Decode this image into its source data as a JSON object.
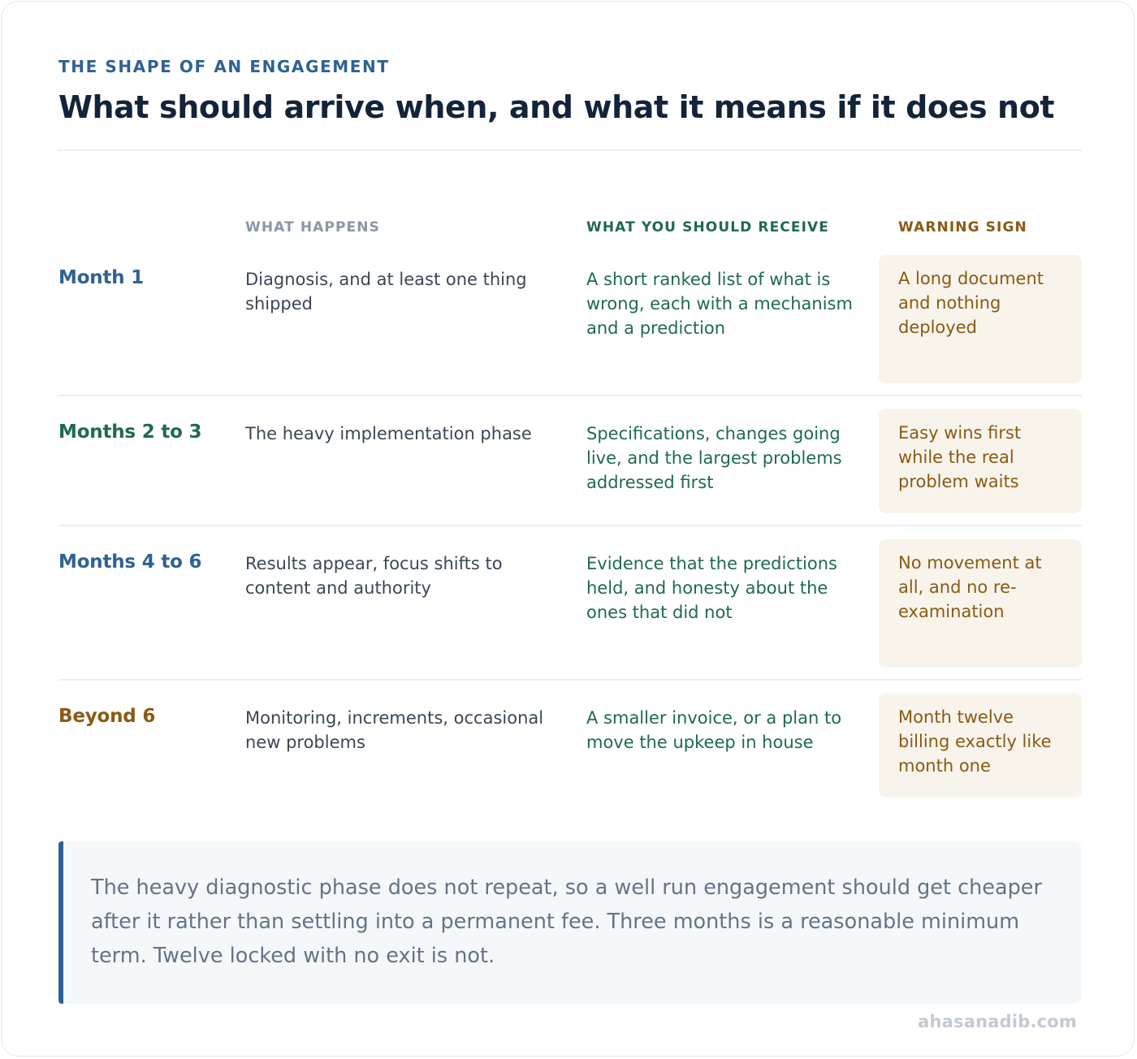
{
  "header": {
    "eyebrow": "THE SHAPE OF AN ENGAGEMENT",
    "title": "What should arrive when, and what it means if it does not"
  },
  "columns": {
    "happens": "WHAT HAPPENS",
    "receive": "WHAT YOU SHOULD RECEIVE",
    "warning": "WARNING SIGN"
  },
  "colors": {
    "blue": "#2f6293",
    "green": "#1e6b4b",
    "amber": "#8a5a12",
    "warning_bg": "#f8f4ec"
  },
  "rows": [
    {
      "phase": "Month 1",
      "phase_color": "#2f6293",
      "happens": "Diagnosis, and at least one thing shipped",
      "receive": "A short ranked list of what is wrong, each with a mechanism and a prediction",
      "warning": "A long document and nothing deployed"
    },
    {
      "phase": "Months 2 to 3",
      "phase_color": "#1e6b4b",
      "happens": "The heavy implementation phase",
      "receive": "Specifications, changes going live, and the largest problems addressed first",
      "warning": "Easy wins first while the real problem waits"
    },
    {
      "phase": "Months 4 to 6",
      "phase_color": "#2f6293",
      "happens": "Results appear, focus shifts to content and authority",
      "receive": "Evidence that the predictions held, and honesty about the ones that did not",
      "warning": "No movement at all, and no re-examination"
    },
    {
      "phase": "Beyond 6",
      "phase_color": "#8a5a12",
      "happens": "Monitoring, increments, occasional new problems",
      "receive": "A smaller invoice, or a plan to move the upkeep in house",
      "warning": "Month twelve billing exactly like month one"
    }
  ],
  "callout": {
    "text": "The heavy diagnostic phase does not repeat, so a well run engagement should get cheaper after it rather than settling into a permanent fee. Three months is a reasonable minimum term. Twelve locked with no exit is not."
  },
  "footer": {
    "site": "ahasanadib.com"
  }
}
